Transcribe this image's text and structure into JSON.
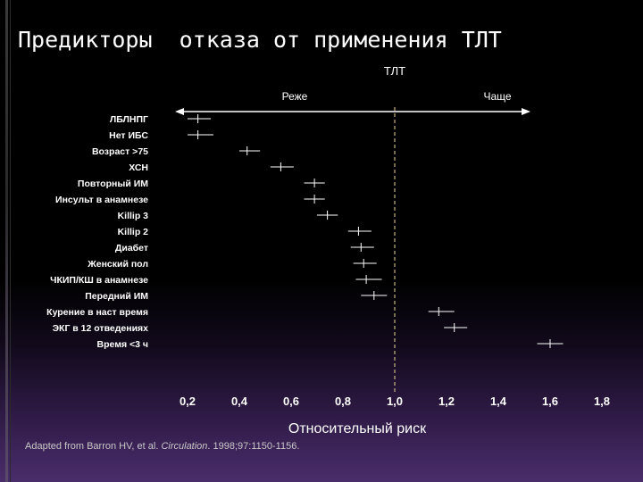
{
  "title": "Предикторы  отказа от применения ТЛТ",
  "footer": {
    "prefix": "Adapted from Barron HV, et al. ",
    "journal": "Circulation",
    "suffix": ". 1998;97:1150-1156."
  },
  "chart_data": {
    "type": "forest",
    "header": "ТЛТ",
    "direction_left": "Реже",
    "direction_right": "Чаще",
    "xlabel": "Относительный риск",
    "xlim": [
      0.2,
      1.8
    ],
    "xticks": [
      0.2,
      0.4,
      0.6,
      0.8,
      1.0,
      1.2,
      1.4,
      1.6,
      1.8
    ],
    "xtick_labels": [
      "0,2",
      "0,4",
      "0,6",
      "0,8",
      "1,0",
      "1,2",
      "1,4",
      "1,6",
      "1,8"
    ],
    "reference_line": 1.0,
    "rows": [
      {
        "label": "ЛБЛНПГ",
        "value": 0.24,
        "low": 0.2,
        "high": 0.29
      },
      {
        "label": "Нет ИБС",
        "value": 0.24,
        "low": 0.2,
        "high": 0.3
      },
      {
        "label": "Возраст >75",
        "value": 0.43,
        "low": 0.4,
        "high": 0.48
      },
      {
        "label": "ХСН",
        "value": 0.56,
        "low": 0.52,
        "high": 0.61
      },
      {
        "label": "Повторный ИМ",
        "value": 0.69,
        "low": 0.65,
        "high": 0.73
      },
      {
        "label": "Инсульт в анамнезе",
        "value": 0.69,
        "low": 0.65,
        "high": 0.73
      },
      {
        "label": "Killip 3",
        "value": 0.74,
        "low": 0.7,
        "high": 0.78
      },
      {
        "label": "Killip 2",
        "value": 0.86,
        "low": 0.82,
        "high": 0.91
      },
      {
        "label": "Диабет",
        "value": 0.87,
        "low": 0.83,
        "high": 0.92
      },
      {
        "label": "Женский пол",
        "value": 0.88,
        "low": 0.84,
        "high": 0.93
      },
      {
        "label": "ЧКИП/КШ в анамнезе",
        "value": 0.89,
        "low": 0.85,
        "high": 0.95
      },
      {
        "label": "Передний ИМ",
        "value": 0.92,
        "low": 0.87,
        "high": 0.97
      },
      {
        "label": "Курение в наст время",
        "value": 1.17,
        "low": 1.13,
        "high": 1.23
      },
      {
        "label": "ЭКГ в 12 отведениях",
        "value": 1.23,
        "low": 1.19,
        "high": 1.28
      },
      {
        "label": "Время <3 ч",
        "value": 1.6,
        "low": 1.55,
        "high": 1.65
      }
    ],
    "colors": {
      "line": "#ffffff",
      "reference": "#e8d898"
    }
  }
}
